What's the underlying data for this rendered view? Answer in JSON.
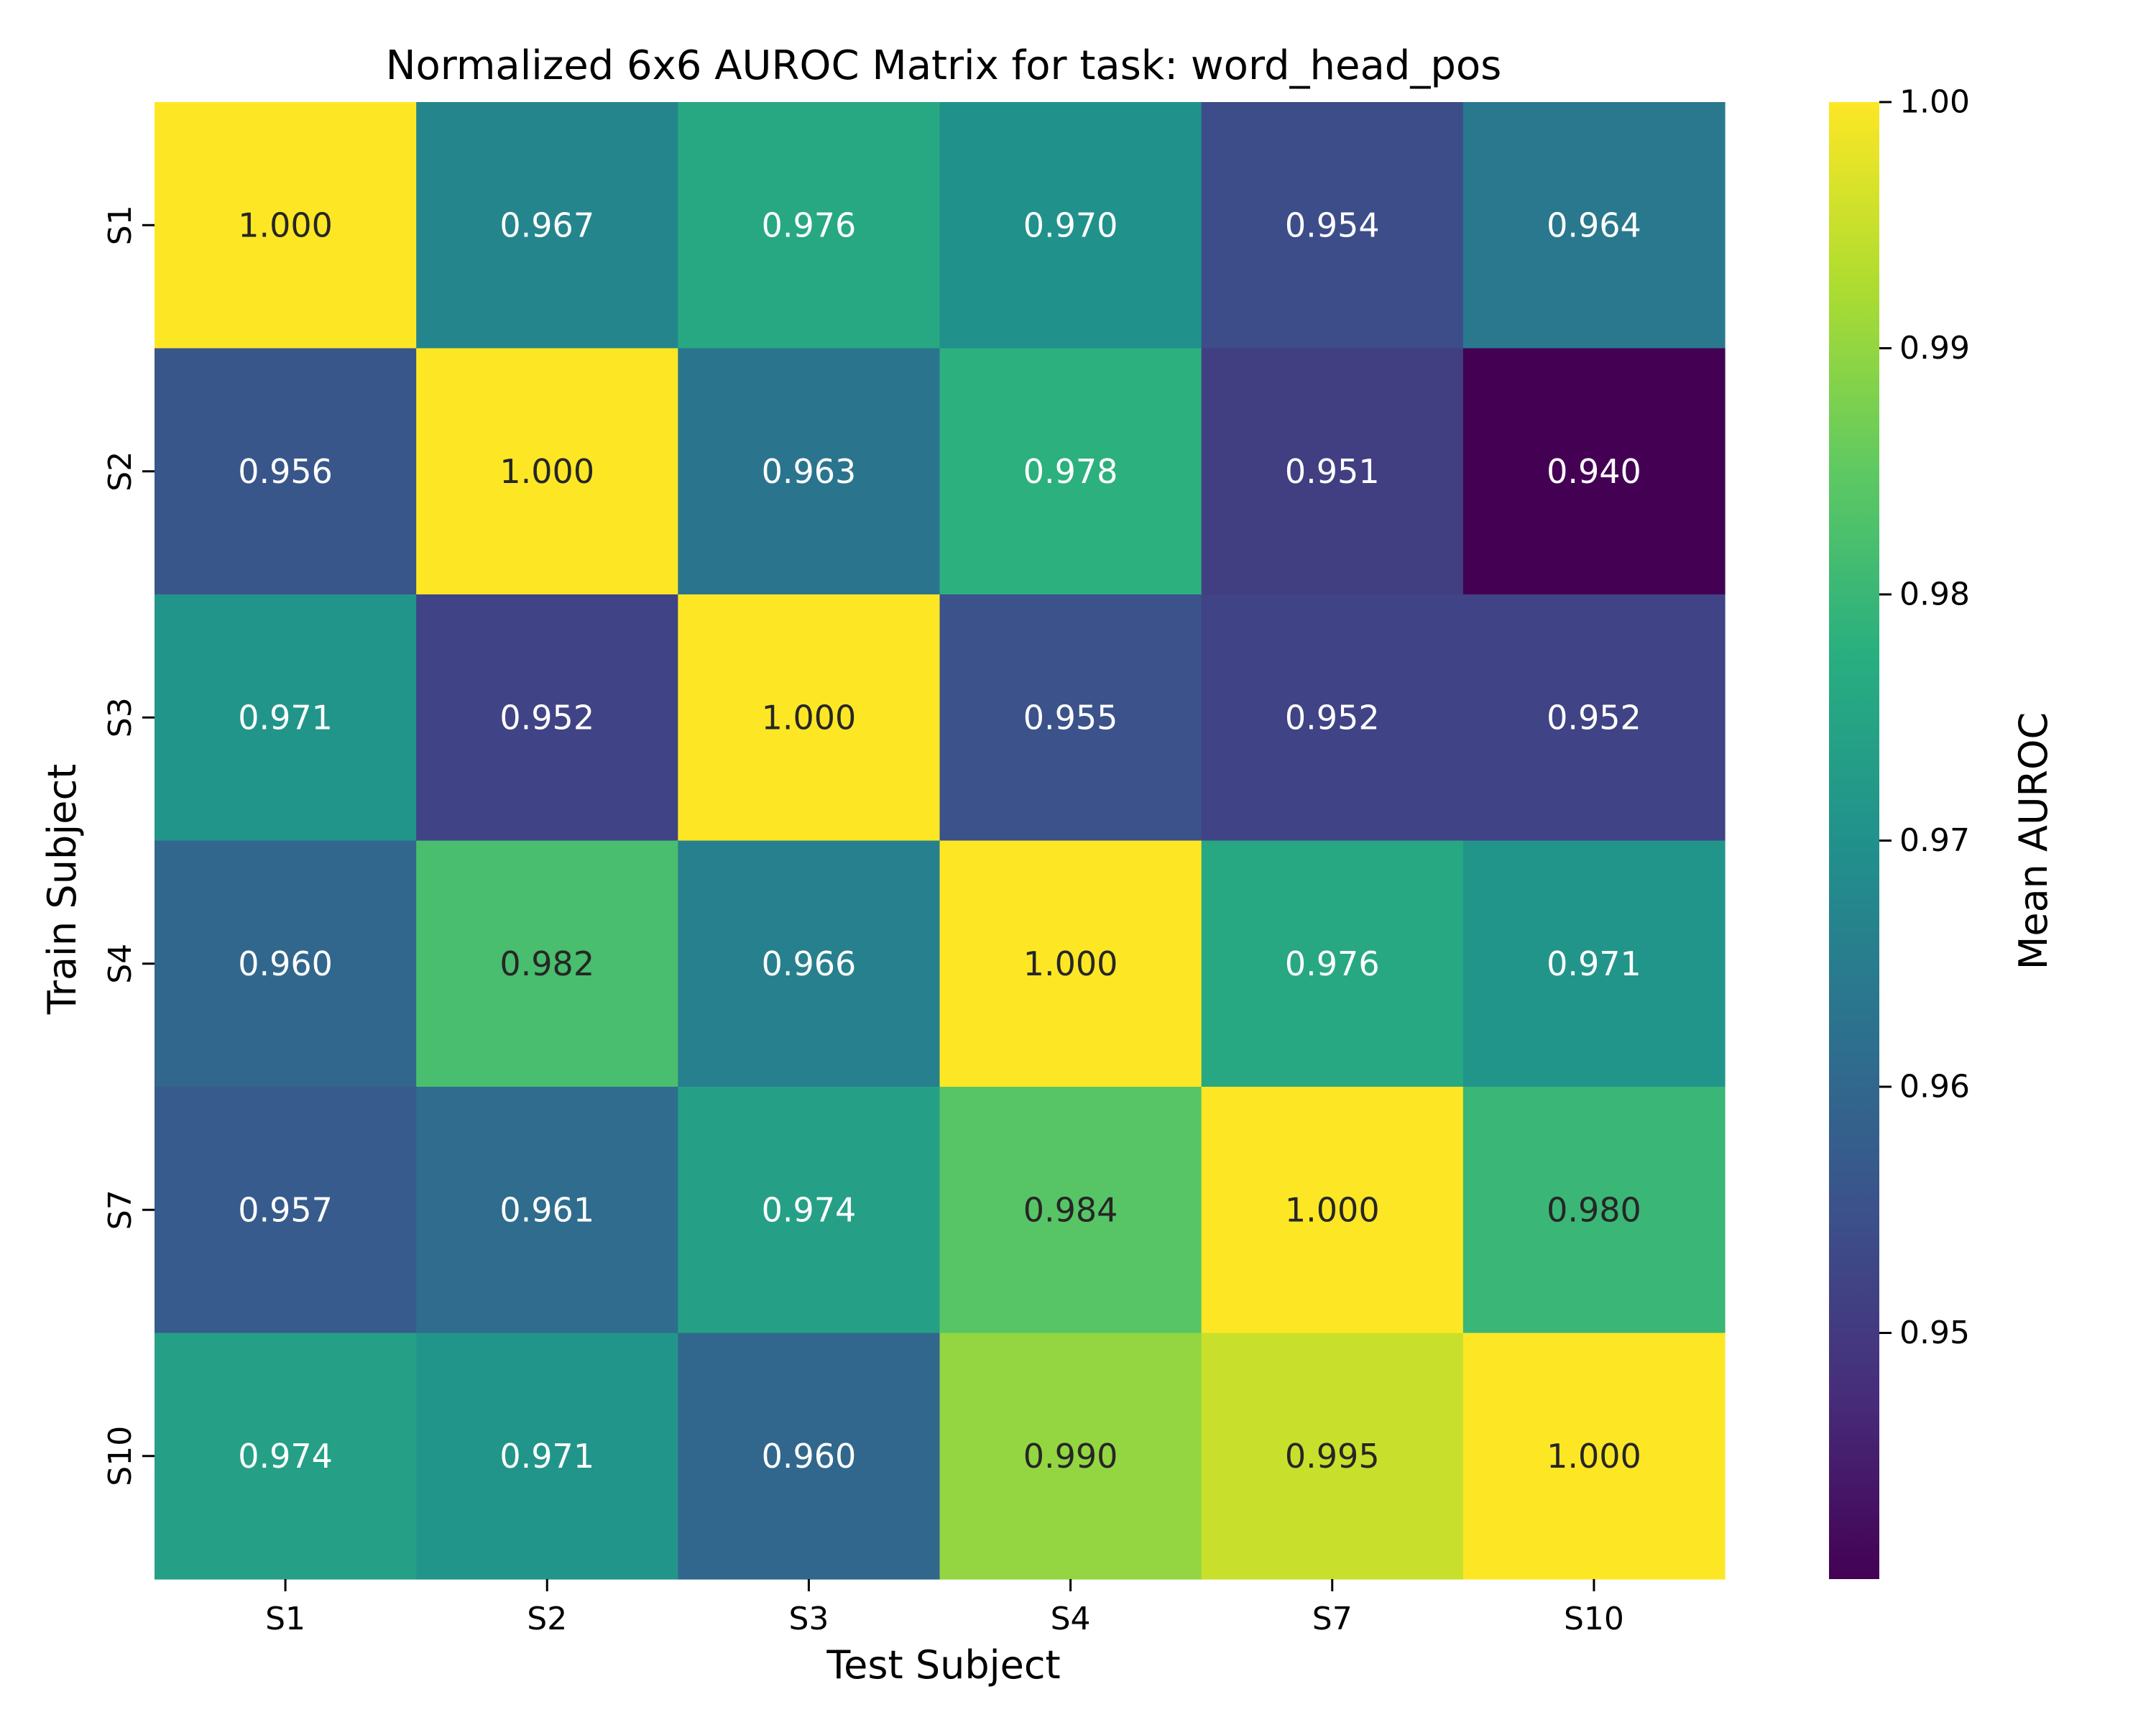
{
  "chart_data": {
    "type": "heatmap",
    "title": "Normalized 6x6 AUROC Matrix for task: word_head_pos",
    "xlabel": "Test Subject",
    "ylabel": "Train Subject",
    "x_categories": [
      "S1",
      "S2",
      "S3",
      "S4",
      "S7",
      "S10"
    ],
    "y_categories": [
      "S1",
      "S2",
      "S3",
      "S4",
      "S7",
      "S10"
    ],
    "values": [
      [
        1.0,
        0.967,
        0.976,
        0.97,
        0.954,
        0.964
      ],
      [
        0.956,
        1.0,
        0.963,
        0.978,
        0.951,
        0.94
      ],
      [
        0.971,
        0.952,
        1.0,
        0.955,
        0.952,
        0.952
      ],
      [
        0.96,
        0.982,
        0.966,
        1.0,
        0.976,
        0.971
      ],
      [
        0.957,
        0.961,
        0.974,
        0.984,
        1.0,
        0.98
      ],
      [
        0.974,
        0.971,
        0.96,
        0.99,
        0.995,
        1.0
      ]
    ],
    "value_labels": [
      [
        "1.000",
        "0.967",
        "0.976",
        "0.970",
        "0.954",
        "0.964"
      ],
      [
        "0.956",
        "1.000",
        "0.963",
        "0.978",
        "0.951",
        "0.940"
      ],
      [
        "0.971",
        "0.952",
        "1.000",
        "0.955",
        "0.952",
        "0.952"
      ],
      [
        "0.960",
        "0.982",
        "0.966",
        "1.000",
        "0.976",
        "0.971"
      ],
      [
        "0.957",
        "0.961",
        "0.974",
        "0.984",
        "1.000",
        "0.980"
      ],
      [
        "0.974",
        "0.971",
        "0.960",
        "0.990",
        "0.995",
        "1.000"
      ]
    ],
    "colorbar": {
      "label": "Mean AUROC",
      "colormap": "viridis",
      "vmin": 0.94,
      "vmax": 1.0,
      "ticks": [
        0.95,
        0.96,
        0.97,
        0.98,
        0.99,
        1.0
      ],
      "tick_labels": [
        "0.95",
        "0.96",
        "0.97",
        "0.98",
        "0.99",
        "1.00"
      ]
    },
    "grid": false
  }
}
